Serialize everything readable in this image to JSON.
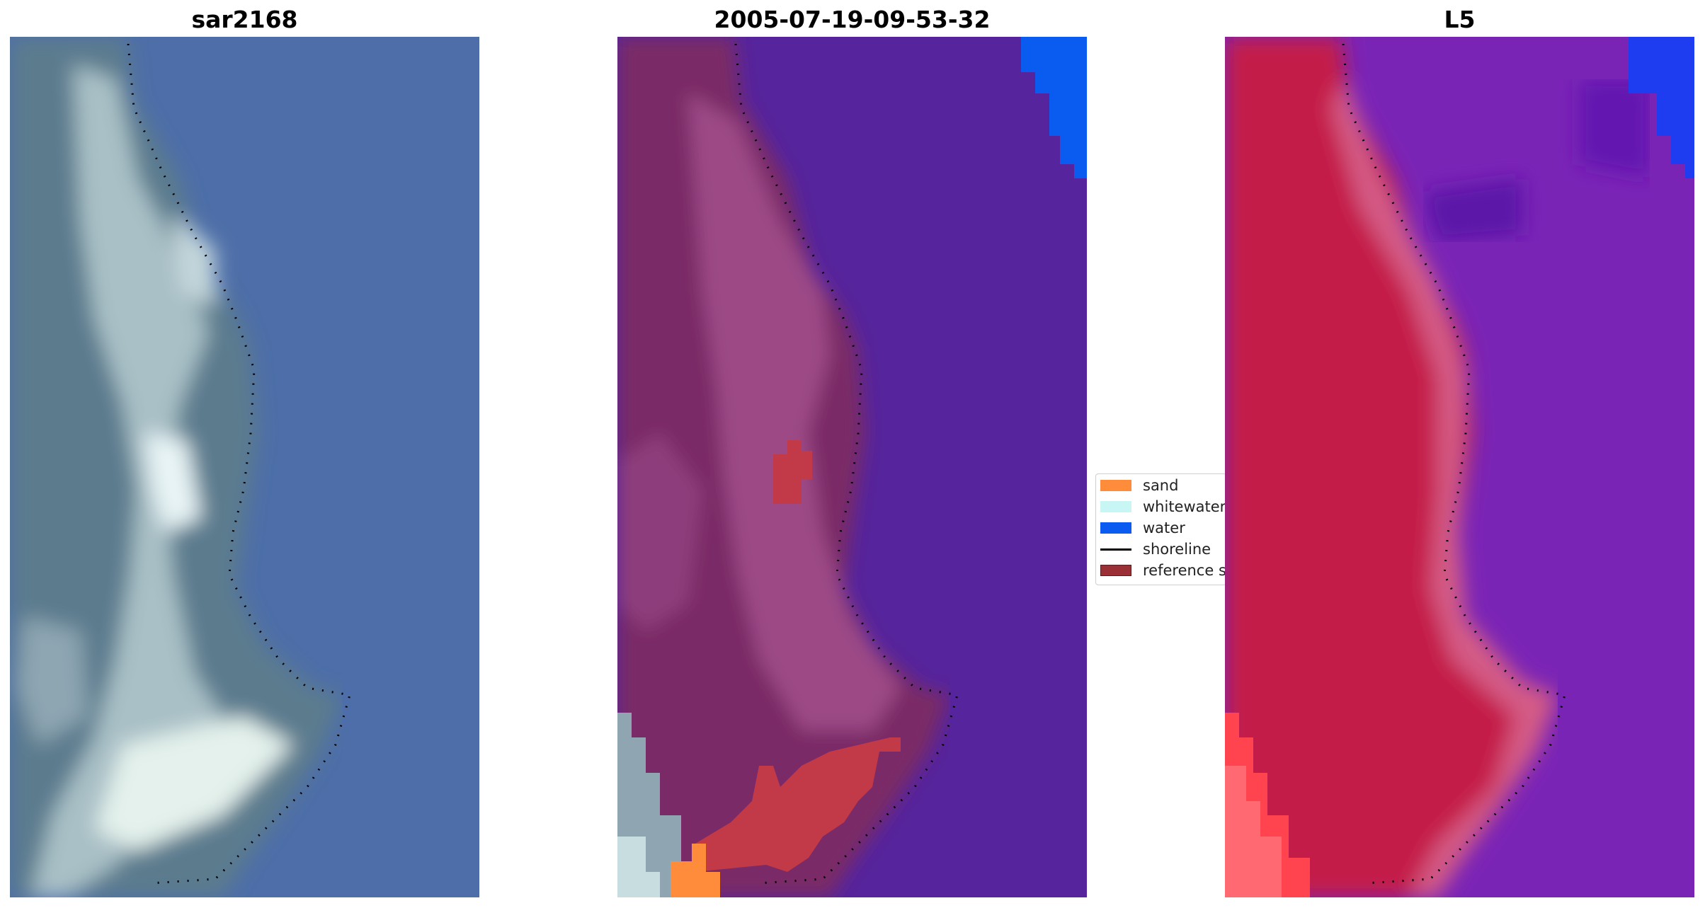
{
  "panels": [
    {
      "title": "sar2168"
    },
    {
      "title": "2005-07-19-09-53-32"
    },
    {
      "title": "L5"
    }
  ],
  "legend": {
    "items": [
      {
        "label": "sand",
        "color": "#ff8c3a",
        "kind": "patch"
      },
      {
        "label": "whitewater",
        "color": "#c8f6f4",
        "kind": "patch"
      },
      {
        "label": "water",
        "color": "#0a5cf0",
        "kind": "patch"
      },
      {
        "label": "shoreline",
        "color": "#000000",
        "kind": "line"
      },
      {
        "label": "reference shoreline",
        "color": "#9a3036",
        "kind": "patch"
      }
    ]
  },
  "colors": {
    "rgb_water": "#4a6aa6",
    "rgb_land": "#5a7a8a",
    "rgb_surf": "#e6f2f0",
    "class_land": "#7a2a66",
    "class_water": "#55249c",
    "class_water_mask": "#0a5cf0",
    "class_reference": "#c23a48",
    "ndwi_land": "#c81e4e",
    "ndwi_water": "#7a22b4",
    "shoreline": "#000000"
  }
}
